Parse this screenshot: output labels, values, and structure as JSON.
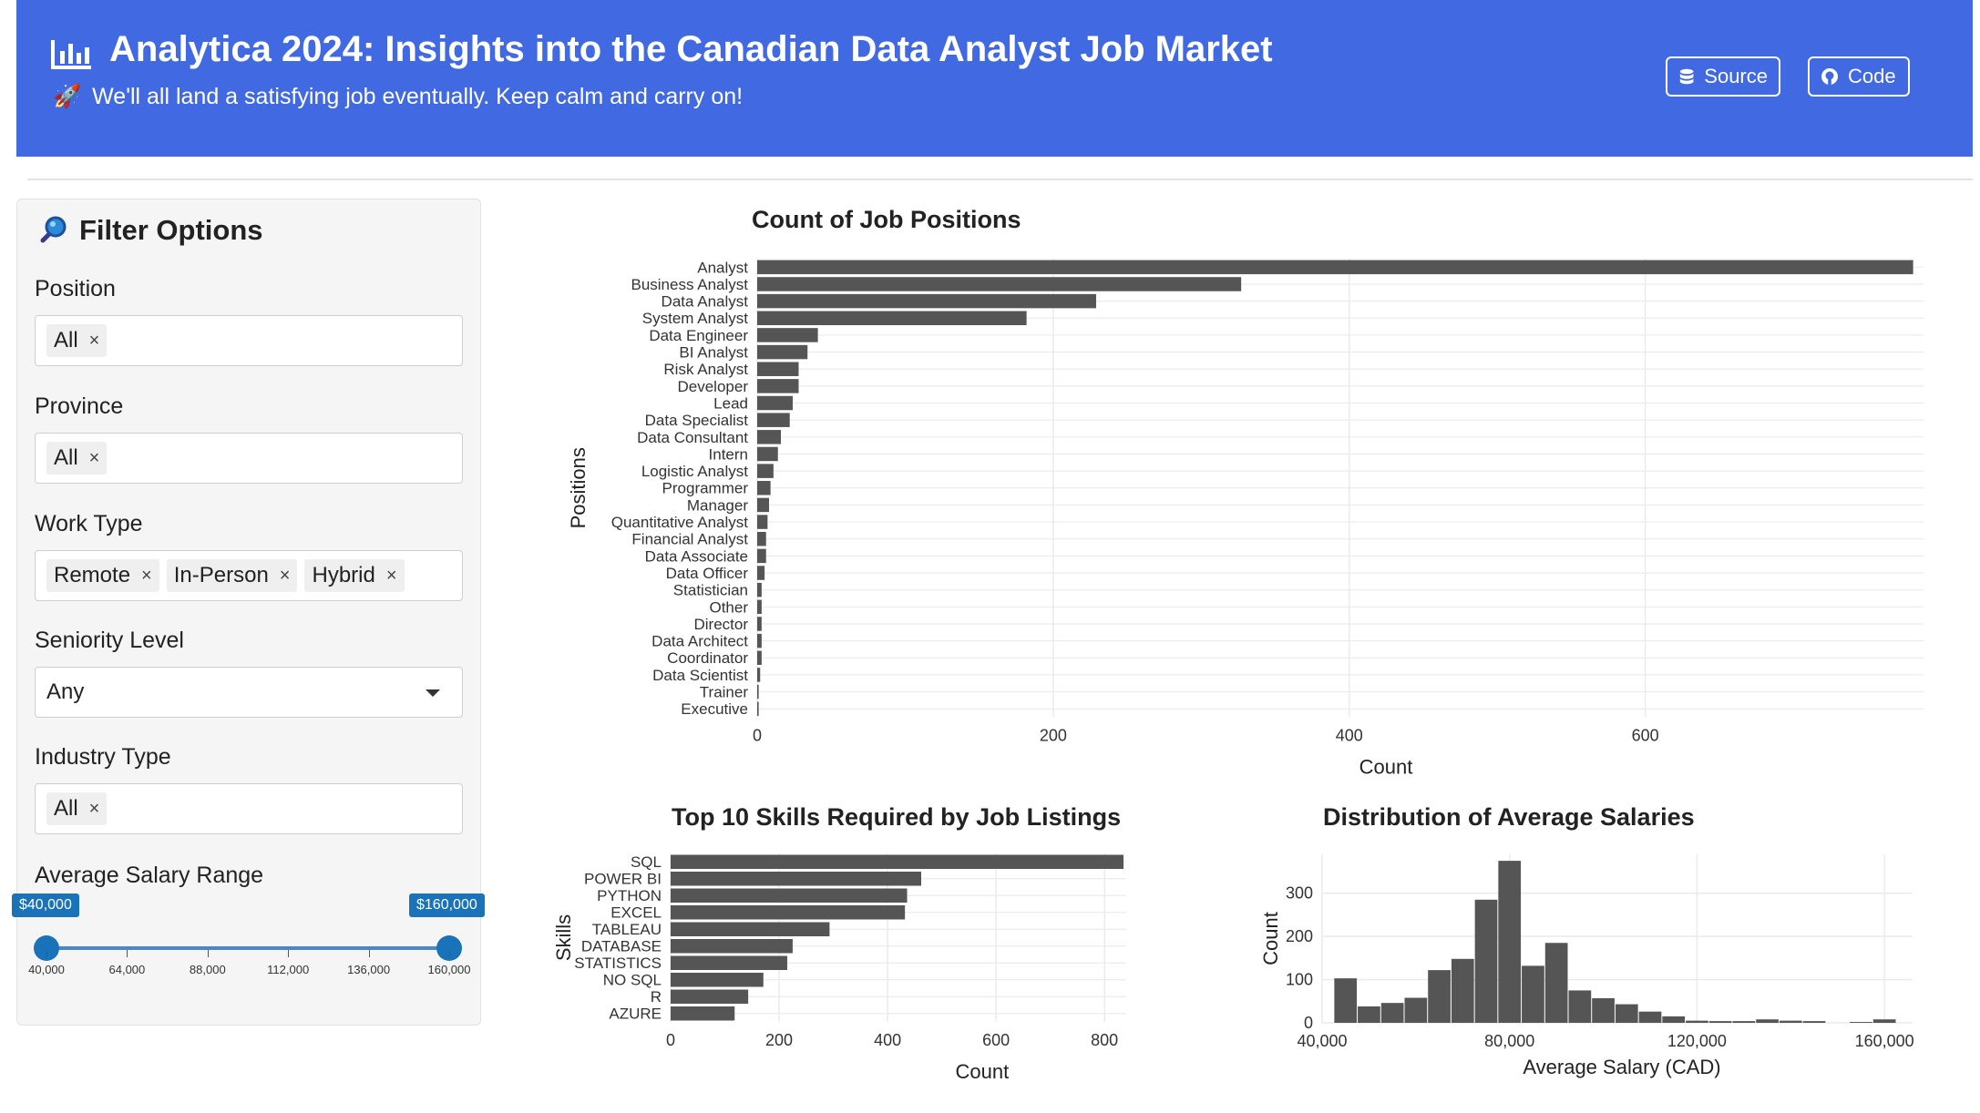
{
  "header": {
    "title": "Analytica 2024: Insights into the Canadian Data Analyst Job Market",
    "subtitle": "We'll all land a satisfying job eventually. Keep calm and carry on!",
    "source_label": "Source",
    "code_label": "Code",
    "title_icon": "bar-chart-icon",
    "subtitle_icon": "rocket-icon",
    "background_color": "#4169e1"
  },
  "sidebar": {
    "title": "Filter Options",
    "title_icon": "magnifier-icon",
    "position": {
      "label": "Position",
      "tags": [
        "All"
      ]
    },
    "province": {
      "label": "Province",
      "tags": [
        "All"
      ]
    },
    "work_type": {
      "label": "Work Type",
      "tags": [
        "Remote",
        "In-Person",
        "Hybrid"
      ]
    },
    "seniority": {
      "label": "Seniority Level",
      "value": "Any"
    },
    "industry": {
      "label": "Industry Type",
      "tags": [
        "All"
      ]
    },
    "salary": {
      "label": "Average Salary Range",
      "min_bubble": "$40,000",
      "max_bubble": "$160,000",
      "min_value": 40000,
      "max_value": 160000,
      "range_min": 40000,
      "range_max": 160000,
      "ticks": [
        "40,000",
        "64,000",
        "88,000",
        "112,000",
        "136,000",
        "160,000"
      ]
    }
  },
  "charts": {
    "positions": {
      "title": "Count of Job Positions",
      "xlabel": "Count",
      "ylabel": "Positions"
    },
    "skills": {
      "title": "Top 10 Skills Required by Job Listings",
      "xlabel": "Count",
      "ylabel": "Skills"
    },
    "salary": {
      "title": "Distribution of Average Salaries",
      "xlabel": "Average Salary (CAD)",
      "ylabel": "Count"
    }
  },
  "chart_data": [
    {
      "type": "bar",
      "orientation": "horizontal",
      "title": "Count of Job Positions",
      "xlabel": "Count",
      "ylabel": "Positions",
      "xlim": [
        0,
        788
      ],
      "xticks": [
        0,
        200,
        400,
        600
      ],
      "bar_color": "#555555",
      "categories": [
        "Analyst",
        "Business Analyst",
        "Data Analyst",
        "System Analyst",
        "Data Engineer",
        "BI Analyst",
        "Risk Analyst",
        "Developer",
        "Lead",
        "Data Specialist",
        "Data Consultant",
        "Intern",
        "Logistic Analyst",
        "Programmer",
        "Manager",
        "Quantitative Analyst",
        "Financial Analyst",
        "Data Associate",
        "Data Officer",
        "Statistician",
        "Other",
        "Director",
        "Data Architect",
        "Coordinator",
        "Data Scientist",
        "Trainer",
        "Executive"
      ],
      "values": [
        781,
        327,
        229,
        182,
        41,
        34,
        28,
        28,
        24,
        22,
        16,
        14,
        11,
        9,
        8,
        7,
        6,
        6,
        5,
        3,
        3,
        3,
        3,
        3,
        2,
        1,
        1
      ]
    },
    {
      "type": "bar",
      "orientation": "horizontal",
      "title": "Top 10 Skills Required by Job Listings",
      "xlabel": "Count",
      "ylabel": "Skills",
      "xlim": [
        0,
        840
      ],
      "xticks": [
        0,
        200,
        400,
        600,
        800
      ],
      "bar_color": "#555555",
      "categories": [
        "SQL",
        "POWER BI",
        "PYTHON",
        "EXCEL",
        "TABLEAU",
        "DATABASE",
        "STATISTICS",
        "NO SQL",
        "R",
        "AZURE"
      ],
      "values": [
        835,
        462,
        436,
        432,
        293,
        225,
        215,
        171,
        143,
        118
      ]
    },
    {
      "type": "bar",
      "subtype": "histogram",
      "title": "Distribution of Average Salaries",
      "xlabel": "Average Salary (CAD)",
      "ylabel": "Count",
      "xlim": [
        40000,
        166000
      ],
      "ylim": [
        0,
        390
      ],
      "xticks": [
        "40,000",
        "80,000",
        "120,000",
        "160,000"
      ],
      "yticks": [
        0,
        100,
        200,
        300
      ],
      "bar_color": "#555555",
      "bin_width": 5000,
      "bin_starts": [
        42500,
        47500,
        52500,
        57500,
        62500,
        67500,
        72500,
        77500,
        82500,
        87500,
        92500,
        97500,
        102500,
        107500,
        112500,
        117500,
        122500,
        127500,
        132500,
        137500,
        142500,
        147500,
        152500,
        157500
      ],
      "values": [
        103,
        38,
        46,
        58,
        122,
        148,
        285,
        375,
        132,
        185,
        75,
        57,
        43,
        26,
        15,
        5,
        4,
        4,
        8,
        5,
        4,
        0,
        2,
        8
      ]
    }
  ]
}
